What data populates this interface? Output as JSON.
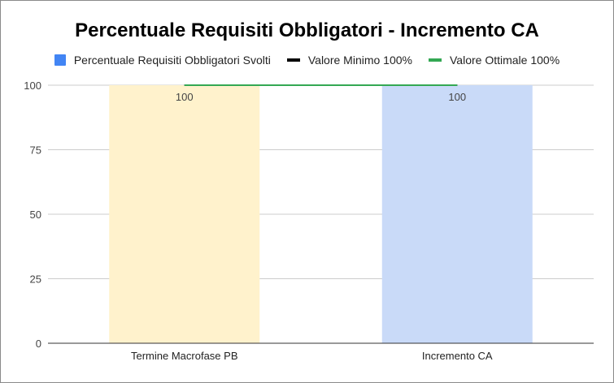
{
  "chart_data": {
    "type": "bar",
    "title": "Percentuale Requisiti Obbligatori - Incremento CA",
    "categories": [
      "Termine Macrofase PB",
      "Incremento CA"
    ],
    "series": [
      {
        "name": "Percentuale Requisiti Obbligatori Svolti",
        "kind": "bar",
        "values": [
          100,
          100
        ],
        "data_labels": [
          "100",
          "100"
        ],
        "bar_colors": [
          "#fff2cc",
          "#c9daf8"
        ],
        "legend_color": "#4285f4"
      },
      {
        "name": "Valore Minimo 100%",
        "kind": "line",
        "values": [
          100,
          100
        ],
        "color": "#000000"
      },
      {
        "name": "Valore Ottimale 100%",
        "kind": "line",
        "values": [
          100,
          100
        ],
        "color": "#34a853"
      }
    ],
    "ylim": [
      0,
      100
    ],
    "yticks": [
      "0",
      "25",
      "50",
      "75",
      "100"
    ],
    "grid": true,
    "legend_position": "top",
    "xlabel": "",
    "ylabel": ""
  }
}
